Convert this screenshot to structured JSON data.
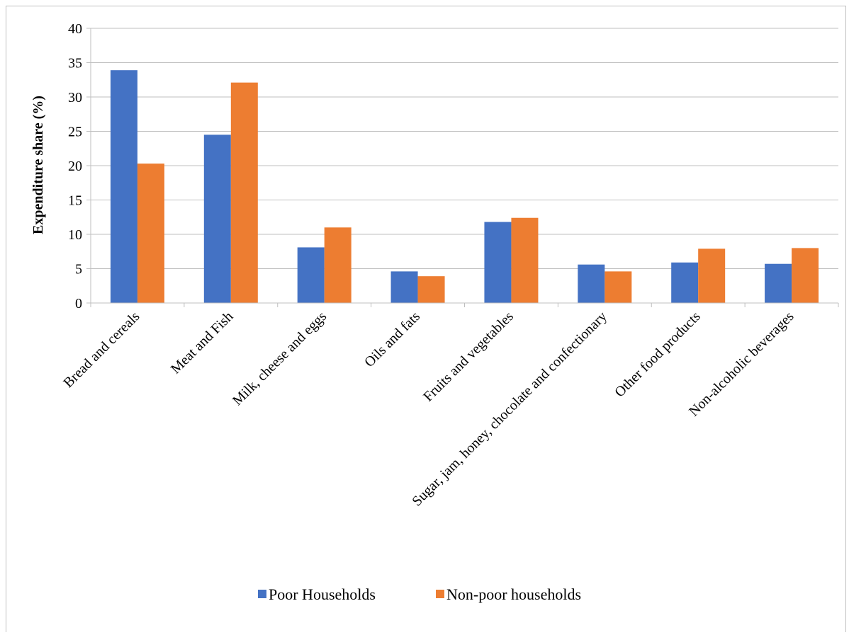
{
  "chart_data": {
    "type": "bar",
    "title": "",
    "xlabel": "",
    "ylabel": "Expenditure share (%)",
    "ylim": [
      0,
      40
    ],
    "yticks": [
      0,
      5,
      10,
      15,
      20,
      25,
      30,
      35,
      40
    ],
    "grid": true,
    "legend_position": "bottom",
    "categories": [
      "Bread and cereals",
      "Meat and Fish",
      "Milk, cheese and eggs",
      "Oils and fats",
      "Fruits and vegetables",
      "Sugar, jam, honey, chocolate and confectionary",
      "Other food products",
      "Non-alcoholic beverages"
    ],
    "series": [
      {
        "name": "Poor Households",
        "color": "#4472c4",
        "values": [
          33.9,
          24.5,
          8.1,
          4.6,
          11.8,
          5.6,
          5.9,
          5.7
        ]
      },
      {
        "name": "Non-poor households",
        "color": "#ed7d31",
        "values": [
          20.3,
          32.1,
          11.0,
          3.9,
          12.4,
          4.6,
          7.9,
          8.0
        ]
      }
    ]
  }
}
